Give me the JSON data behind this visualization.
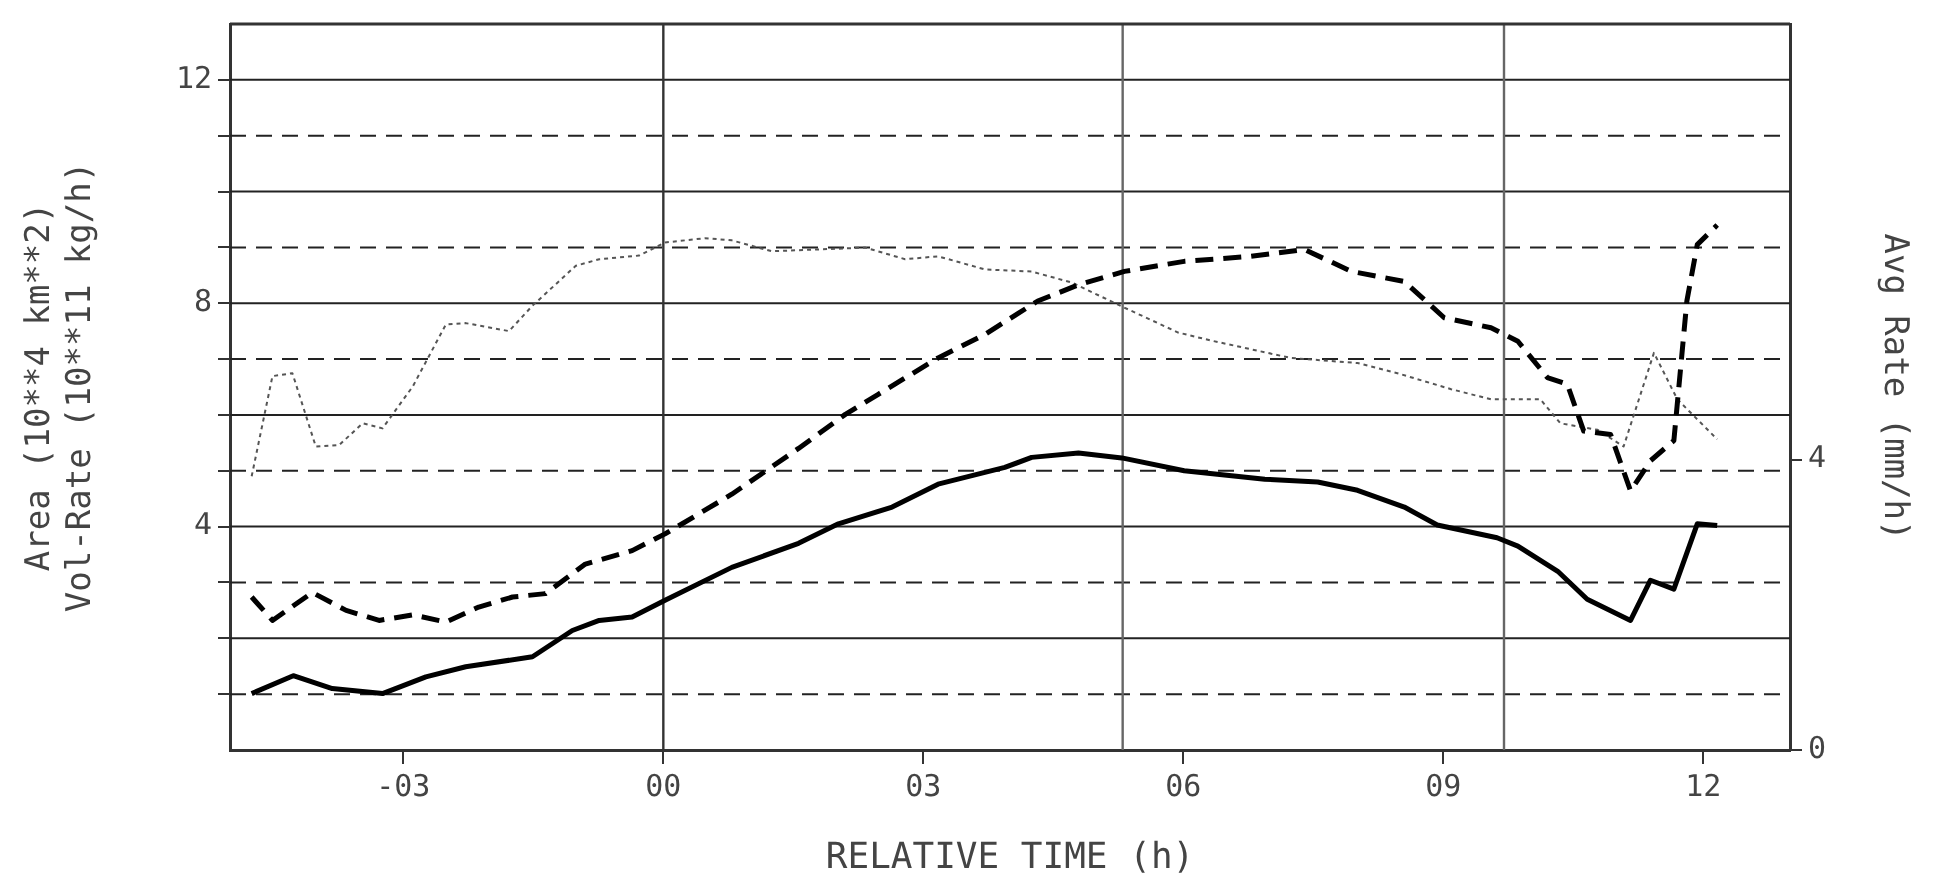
{
  "chart_data": {
    "type": "line",
    "xlabel": "RELATIVE TIME (h)",
    "ylabel": "Area (10**4 km**2)\nVol-Rate (10**11 kg/h)",
    "y2label": "Avg Rate (mm/h)",
    "xlim": [
      -5,
      13
    ],
    "xticks": [
      {
        "value": -3,
        "label": "-03"
      },
      {
        "value": 0,
        "label": "00"
      },
      {
        "value": 3,
        "label": "03"
      },
      {
        "value": 6,
        "label": "06"
      },
      {
        "value": 9,
        "label": "09"
      },
      12
    ],
    "ylim": [
      0,
      13
    ],
    "yticks": [
      {
        "value": 1,
        "label": null
      },
      {
        "value": 2,
        "label": null
      },
      {
        "value": 3,
        "label": null
      },
      4,
      {
        "value": 5,
        "label": null
      },
      {
        "value": 6,
        "label": null
      },
      {
        "value": 7,
        "label": null
      },
      8,
      {
        "value": 9,
        "label": null
      },
      {
        "value": 10,
        "label": null
      },
      {
        "value": 11,
        "label": null
      },
      12
    ],
    "y2lim": [
      0,
      10
    ],
    "y2ticks": [
      0,
      4
    ],
    "grid": "y",
    "legend": false,
    "marker": "none",
    "ref_lines": [
      {
        "axis": "x",
        "value": 0,
        "color": "#333333"
      },
      {
        "axis": "x",
        "value": 5.3,
        "color": "#666666"
      },
      {
        "axis": "x",
        "value": 9.7,
        "color": "#666666"
      }
    ],
    "series": [
      {
        "color": "#000000",
        "line_style": "solid",
        "x": [
          -4.75,
          -4.27,
          -3.82,
          -3.24,
          -2.74,
          -2.28,
          -1.51,
          -1.05,
          -0.74,
          -0.36,
          0.02,
          0.79,
          1.56,
          2.02,
          2.64,
          3.17,
          3.94,
          4.25,
          4.79,
          5.29,
          6.01,
          6.94,
          7.55,
          8.01,
          8.55,
          8.93,
          9.62,
          9.86,
          10.32,
          10.66,
          11.16,
          11.39,
          11.66,
          11.93,
          12.16
        ],
        "values": [
          1.01,
          1.33,
          1.1,
          1.01,
          1.31,
          1.49,
          1.67,
          2.14,
          2.32,
          2.38,
          2.68,
          3.27,
          3.7,
          4.05,
          4.35,
          4.76,
          5.06,
          5.24,
          5.32,
          5.23,
          5.0,
          4.85,
          4.8,
          4.65,
          4.35,
          4.03,
          3.8,
          3.65,
          3.2,
          2.7,
          2.32,
          3.04,
          2.88,
          4.05,
          4.02
        ]
      },
      {
        "color": "#000000",
        "line_style": "dashed",
        "x": [
          -4.75,
          -4.51,
          -4.05,
          -3.66,
          -3.28,
          -2.89,
          -2.51,
          -2.13,
          -1.74,
          -1.36,
          -0.9,
          -0.36,
          0.02,
          0.79,
          1.56,
          2.1,
          2.48,
          3.17,
          3.71,
          4.32,
          4.79,
          5.32,
          6.01,
          6.78,
          7.4,
          7.94,
          8.55,
          9.01,
          9.55,
          9.86,
          10.2,
          10.43,
          10.62,
          10.93,
          11.16,
          11.39,
          11.66,
          11.81,
          11.93,
          12.16
        ],
        "values": [
          2.74,
          2.32,
          2.82,
          2.5,
          2.32,
          2.42,
          2.29,
          2.56,
          2.74,
          2.8,
          3.33,
          3.57,
          3.87,
          4.58,
          5.4,
          6.01,
          6.37,
          7.02,
          7.44,
          8.04,
          8.33,
          8.57,
          8.75,
          8.84,
          8.96,
          8.57,
          8.39,
          7.74,
          7.56,
          7.32,
          6.67,
          6.55,
          5.71,
          5.65,
          4.64,
          5.18,
          5.54,
          8.04,
          9.05,
          9.4
        ]
      },
      {
        "color": "#555555",
        "line_style": "dotted",
        "axis": "y2",
        "x": [
          -4.75,
          -4.51,
          -4.28,
          -4.01,
          -3.74,
          -3.47,
          -3.24,
          -2.89,
          -2.51,
          -2.28,
          -1.78,
          -1.51,
          -1.01,
          -0.74,
          -0.28,
          0.02,
          0.48,
          0.79,
          1.25,
          2.33,
          2.79,
          3.17,
          3.71,
          4.25,
          4.71,
          5.29,
          5.94,
          6.32,
          7.24,
          8.01,
          8.47,
          9.09,
          9.55,
          10.12,
          10.35,
          10.78,
          11.08,
          11.43,
          11.7,
          12.16
        ],
        "values": [
          3.77,
          5.15,
          5.19,
          4.18,
          4.2,
          4.5,
          4.43,
          5.01,
          5.86,
          5.88,
          5.77,
          6.12,
          6.67,
          6.76,
          6.81,
          6.99,
          7.05,
          7.02,
          6.87,
          6.92,
          6.76,
          6.8,
          6.62,
          6.59,
          6.44,
          6.11,
          5.75,
          5.64,
          5.4,
          5.33,
          5.19,
          4.97,
          4.83,
          4.83,
          4.5,
          4.41,
          4.18,
          5.47,
          4.83,
          4.28
        ]
      }
    ]
  }
}
